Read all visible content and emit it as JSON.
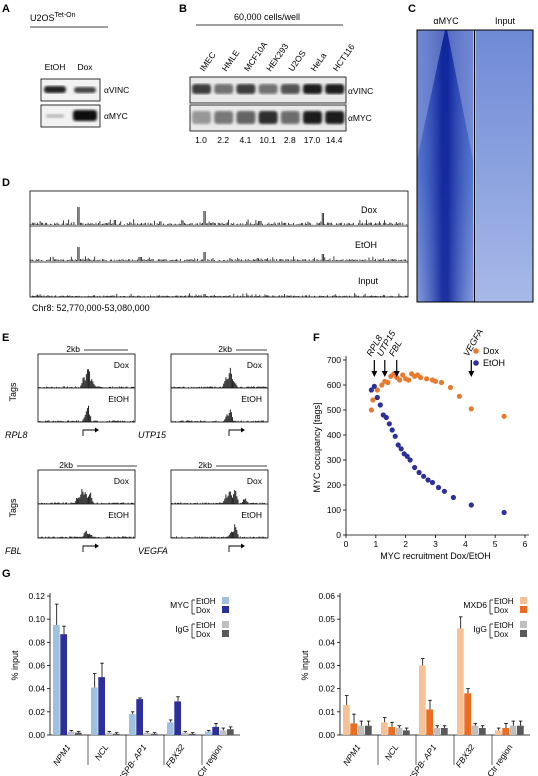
{
  "panels": {
    "A": {
      "letter": "A",
      "cell_line": "U2OS",
      "cell_line_sup": "Tet-On",
      "lanes": [
        "EtOH",
        "Dox"
      ],
      "blots": [
        "αVINC",
        "αMYC"
      ]
    },
    "B": {
      "letter": "B",
      "header": "60,000 cells/well",
      "lanes": [
        "IMEC",
        "HMLE",
        "MCF10A",
        "HEK293",
        "U2OS",
        "HeLa",
        "HCT116"
      ],
      "blots": [
        "αVINC",
        "αMYC"
      ],
      "quant": [
        "1.0",
        "2.2",
        "4.1",
        "10.1",
        "2.8",
        "17.0",
        "14.4"
      ]
    },
    "C": {
      "letter": "C",
      "columns": [
        "αMYC",
        "Input"
      ]
    },
    "D": {
      "letter": "D",
      "tracks": [
        "Dox",
        "EtOH",
        "Input"
      ],
      "region": "Chr8: 52,770,000-53,080,000"
    },
    "E": {
      "letter": "E",
      "ylabel": "Tags",
      "scale": "2kb",
      "conditions": [
        "Dox",
        "EtOH"
      ],
      "genes": [
        "RPL8",
        "UTP15",
        "FBL",
        "VEGFA"
      ]
    },
    "F": {
      "letter": "F",
      "genes": [
        "RPL8",
        "UTP15",
        "FBL",
        "VEGFA"
      ],
      "legend": [
        "Dox",
        "EtOH"
      ]
    },
    "G": {
      "letter": "G",
      "left_legend": {
        "group1": "MYC",
        "group2": "IgG",
        "cond1": "EtOH",
        "cond2": "Dox"
      },
      "right_legend": {
        "group1": "MXD6",
        "group2": "IgG",
        "cond1": "EtOH",
        "cond2": "Dox"
      }
    }
  },
  "colors": {
    "dox": "#e87a2e",
    "etoh": "#2d2f9a",
    "myc_etoh": "#9fc1e0",
    "myc_dox": "#2d2f9a",
    "mxd_etoh": "#f6c195",
    "mxd_dox": "#ec6c22",
    "igg_etoh": "#bfbfbf",
    "igg_dox": "#595959"
  },
  "chart_data": [
    {
      "type": "scatter",
      "xlabel": "MYC recruitment Dox/EtOH",
      "ylabel": "MYC occupancy [tags]",
      "xlim": [
        0,
        6
      ],
      "ylim": [
        0,
        700
      ],
      "xticks": [
        0,
        1,
        2,
        3,
        4,
        5,
        6
      ],
      "yticks": [
        0,
        100,
        200,
        300,
        400,
        500,
        600,
        700
      ],
      "annotations": [
        {
          "label": "RPL8",
          "x": 0.95
        },
        {
          "label": "UTP15",
          "x": 1.3
        },
        {
          "label": "FBL",
          "x": 1.7
        },
        {
          "label": "VEGFA",
          "x": 4.2
        }
      ],
      "series": [
        {
          "name": "Dox",
          "points": [
            [
              0.85,
              500
            ],
            [
              0.9,
              540
            ],
            [
              1.05,
              580
            ],
            [
              1.2,
              600
            ],
            [
              1.3,
              615
            ],
            [
              1.4,
              610
            ],
            [
              1.5,
              635
            ],
            [
              1.6,
              645
            ],
            [
              1.7,
              630
            ],
            [
              1.8,
              620
            ],
            [
              1.9,
              640
            ],
            [
              2.0,
              625
            ],
            [
              2.1,
              620
            ],
            [
              2.2,
              645
            ],
            [
              2.3,
              635
            ],
            [
              2.4,
              640
            ],
            [
              2.5,
              630
            ],
            [
              2.7,
              625
            ],
            [
              2.9,
              620
            ],
            [
              3.0,
              615
            ],
            [
              3.2,
              610
            ],
            [
              3.5,
              590
            ],
            [
              3.8,
              555
            ],
            [
              4.2,
              505
            ],
            [
              5.3,
              475
            ]
          ]
        },
        {
          "name": "EtOH",
          "points": [
            [
              0.85,
              580
            ],
            [
              0.95,
              595
            ],
            [
              1.05,
              550
            ],
            [
              1.15,
              520
            ],
            [
              1.25,
              480
            ],
            [
              1.35,
              470
            ],
            [
              1.45,
              445
            ],
            [
              1.55,
              420
            ],
            [
              1.65,
              395
            ],
            [
              1.75,
              360
            ],
            [
              1.85,
              345
            ],
            [
              1.95,
              325
            ],
            [
              2.05,
              315
            ],
            [
              2.15,
              300
            ],
            [
              2.3,
              270
            ],
            [
              2.45,
              250
            ],
            [
              2.6,
              235
            ],
            [
              2.75,
              220
            ],
            [
              2.9,
              210
            ],
            [
              3.1,
              190
            ],
            [
              3.3,
              175
            ],
            [
              3.6,
              150
            ],
            [
              4.2,
              120
            ],
            [
              5.3,
              90
            ]
          ]
        }
      ]
    },
    {
      "type": "bar",
      "ylabel": "% input",
      "ylim": [
        0,
        0.12
      ],
      "yticks": [
        "0.00",
        "0.02",
        "0.04",
        "0.06",
        "0.08",
        "0.10",
        "0.12"
      ],
      "categories": [
        "NPM1",
        "NCL",
        "HSPB-\nAP1",
        "FBX32",
        "Ctr\nregion"
      ],
      "series": [
        {
          "name": "MYC EtOH",
          "values": [
            0.095,
            0.041,
            0.018,
            0.011,
            0.003
          ],
          "errors": [
            0.018,
            0.012,
            0.002,
            0.002,
            0.001
          ]
        },
        {
          "name": "MYC Dox",
          "values": [
            0.087,
            0.05,
            0.031,
            0.029,
            0.007
          ],
          "errors": [
            0.007,
            0.012,
            0.001,
            0.004,
            0.003
          ]
        },
        {
          "name": "IgG EtOH",
          "values": [
            0.003,
            0.002,
            0.002,
            0.002,
            0.004
          ],
          "errors": [
            0.001,
            0.001,
            0.001,
            0.001,
            0.002
          ]
        },
        {
          "name": "IgG Dox",
          "values": [
            0.002,
            0.001,
            0.001,
            0.001,
            0.005
          ],
          "errors": [
            0.001,
            0.001,
            0.001,
            0.001,
            0.002
          ]
        }
      ]
    },
    {
      "type": "bar",
      "ylabel": "% input",
      "ylim": [
        0,
        0.06
      ],
      "yticks": [
        "0.00",
        "0.01",
        "0.02",
        "0.03",
        "0.04",
        "0.05",
        "0.06"
      ],
      "categories": [
        "NPM1",
        "NCL",
        "HSPB-\nAP1",
        "FBX32",
        "Ctr\nregion"
      ],
      "series": [
        {
          "name": "MXD6 EtOH",
          "values": [
            0.013,
            0.0055,
            0.03,
            0.046,
            0.002
          ],
          "errors": [
            0.004,
            0.002,
            0.003,
            0.005,
            0.001
          ]
        },
        {
          "name": "MXD6 Dox",
          "values": [
            0.005,
            0.0035,
            0.011,
            0.018,
            0.003
          ],
          "errors": [
            0.004,
            0.002,
            0.004,
            0.002,
            0.002
          ]
        },
        {
          "name": "IgG EtOH",
          "values": [
            0.004,
            0.003,
            0.003,
            0.004,
            0.004
          ],
          "errors": [
            0.002,
            0.001,
            0.001,
            0.001,
            0.002
          ]
        },
        {
          "name": "IgG Dox",
          "values": [
            0.004,
            0.002,
            0.003,
            0.003,
            0.004
          ],
          "errors": [
            0.002,
            0.001,
            0.001,
            0.001,
            0.002
          ]
        }
      ]
    }
  ]
}
